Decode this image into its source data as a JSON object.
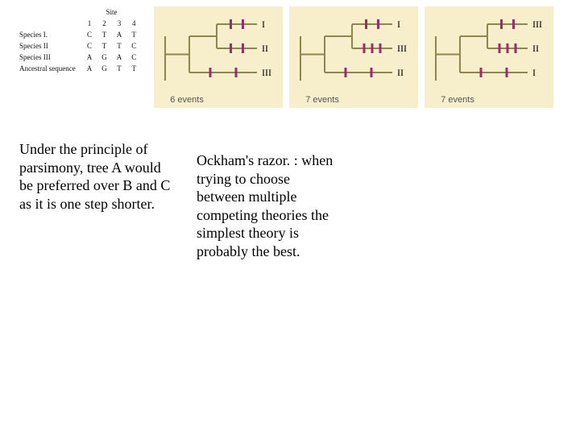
{
  "table": {
    "site_label": "Site",
    "cols": [
      "1",
      "2",
      "3",
      "4"
    ],
    "rows": [
      {
        "name": "Species I.",
        "vals": [
          "C",
          "T",
          "A",
          "T"
        ]
      },
      {
        "name": "Species II",
        "vals": [
          "C",
          "T",
          "T",
          "C"
        ]
      },
      {
        "name": "Species III",
        "vals": [
          "A",
          "G",
          "A",
          "C"
        ]
      },
      {
        "name": "Ancestral sequence",
        "vals": [
          "A",
          "G",
          "T",
          "T"
        ]
      }
    ]
  },
  "trees_common": {
    "panel_bg": "#f7eecb",
    "line_color": "#8f864d",
    "tick_color": "#a0296f",
    "caption_color": "#555555"
  },
  "trees": [
    {
      "caption": "6 events",
      "leaves": [
        "I",
        "II",
        "III"
      ],
      "ticks": [
        2,
        2,
        2
      ]
    },
    {
      "caption": "7 events",
      "leaves": [
        "I",
        "III",
        "II"
      ],
      "ticks": [
        2,
        3,
        2
      ]
    },
    {
      "caption": "7 events",
      "leaves": [
        "III",
        "II",
        "I"
      ],
      "ticks": [
        2,
        3,
        2
      ]
    }
  ],
  "paragraphs": {
    "left": "Under the principle of parsimony, tree A would be preferred over B and C as it is one step shorter.",
    "right": "Ockham's razor. : when trying to choose between multiple competing theories the simplest theory is probably the best."
  }
}
